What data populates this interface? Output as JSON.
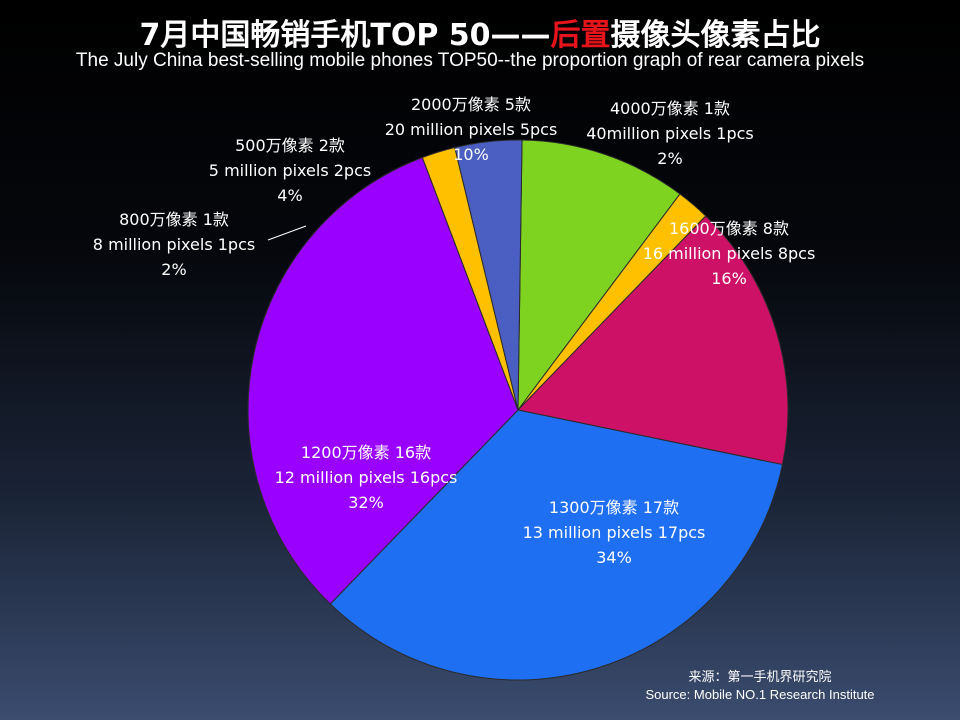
{
  "title_zh_part1": "7月中国畅销手机TOP 50——",
  "title_zh_part2": "后置",
  "title_zh_part3": "摄像头像素占比",
  "title_en": "The July China best-selling mobile phones TOP50--the proportion graph of rear camera pixels",
  "source_zh": "来源：第一手机界研究院",
  "source_en": "Source: Mobile NO.1 Research Institute",
  "chart_data": {
    "type": "pie",
    "slices": [
      {
        "key": "s2000",
        "zh": "2000万像素 5款",
        "en": "20 million pixels 5pcs",
        "pct": "10%",
        "value": 5,
        "color": "#7ed321"
      },
      {
        "key": "s4000",
        "zh": "4000万像素 1款",
        "en": "40million pixels 1pcs",
        "pct": "2%",
        "value": 1,
        "color": "#ffc000"
      },
      {
        "key": "s1600",
        "zh": "1600万像素 8款",
        "en": "16 million pixels 8pcs",
        "pct": "16%",
        "value": 8,
        "color": "#cc1166"
      },
      {
        "key": "s1300",
        "zh": "1300万像素 17款",
        "en": "13 million pixels 17pcs",
        "pct": "34%",
        "value": 17,
        "color": "#1f6ff2"
      },
      {
        "key": "s1200",
        "zh": "1200万像素 16款",
        "en": "12 million pixels 16pcs",
        "pct": "32%",
        "value": 16,
        "color": "#9900ff"
      },
      {
        "key": "s800",
        "zh": "800万像素 1款",
        "en": "8 million pixels 1pcs",
        "pct": "2%",
        "value": 1,
        "color": "#ffc000"
      },
      {
        "key": "s500",
        "zh": "500万像素 2款",
        "en": "5 million pixels 2pcs",
        "pct": "4%",
        "value": 2,
        "color": "#4a5fc1"
      }
    ]
  }
}
